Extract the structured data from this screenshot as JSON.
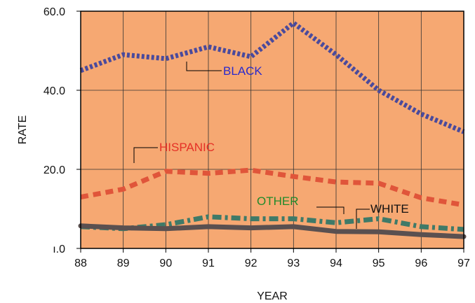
{
  "chart_data": {
    "type": "line",
    "title": "",
    "xlabel": "YEAR",
    "ylabel": "RATE",
    "x": [
      "88",
      "89",
      "90",
      "91",
      "92",
      "93",
      "94",
      "95",
      "96",
      "97"
    ],
    "ylim": [
      0,
      60
    ],
    "y_tick_labels": [
      "ı.0",
      "20.0",
      "40.0",
      "60.0"
    ],
    "y_tick_values": [
      0,
      20,
      40,
      60
    ],
    "grid": true,
    "background_color": "#f6a872",
    "series": [
      {
        "name": "BLACK",
        "color": "#4a4a9c",
        "style": "dotted",
        "values": [
          45,
          49,
          48,
          51,
          48.5,
          57,
          49,
          40,
          34,
          29.5
        ]
      },
      {
        "name": "HISPANIC",
        "color": "#e0553a",
        "style": "dashed",
        "values": [
          13,
          15,
          19.5,
          19,
          19.8,
          18.2,
          16.8,
          16.5,
          12.8,
          11
        ]
      },
      {
        "name": "OTHER",
        "color": "#3f7a68",
        "style": "dash-dot",
        "values": [
          5.5,
          5,
          6,
          8,
          7.5,
          7.5,
          6.5,
          7.5,
          5.5,
          4.8
        ]
      },
      {
        "name": "WHITE",
        "color": "#5a5050",
        "style": "solid",
        "values": [
          5.7,
          5.2,
          5.0,
          5.5,
          5.2,
          5.5,
          4.3,
          4.2,
          3.5,
          3.0
        ]
      }
    ],
    "annotations": [
      {
        "text": "BLACK",
        "color": "#2a2acc"
      },
      {
        "text": "HISPANIC",
        "color": "#e53026"
      },
      {
        "text": "OTHER",
        "color": "#1f8a2a"
      },
      {
        "text": "WHITE",
        "color": "#111111"
      }
    ]
  }
}
